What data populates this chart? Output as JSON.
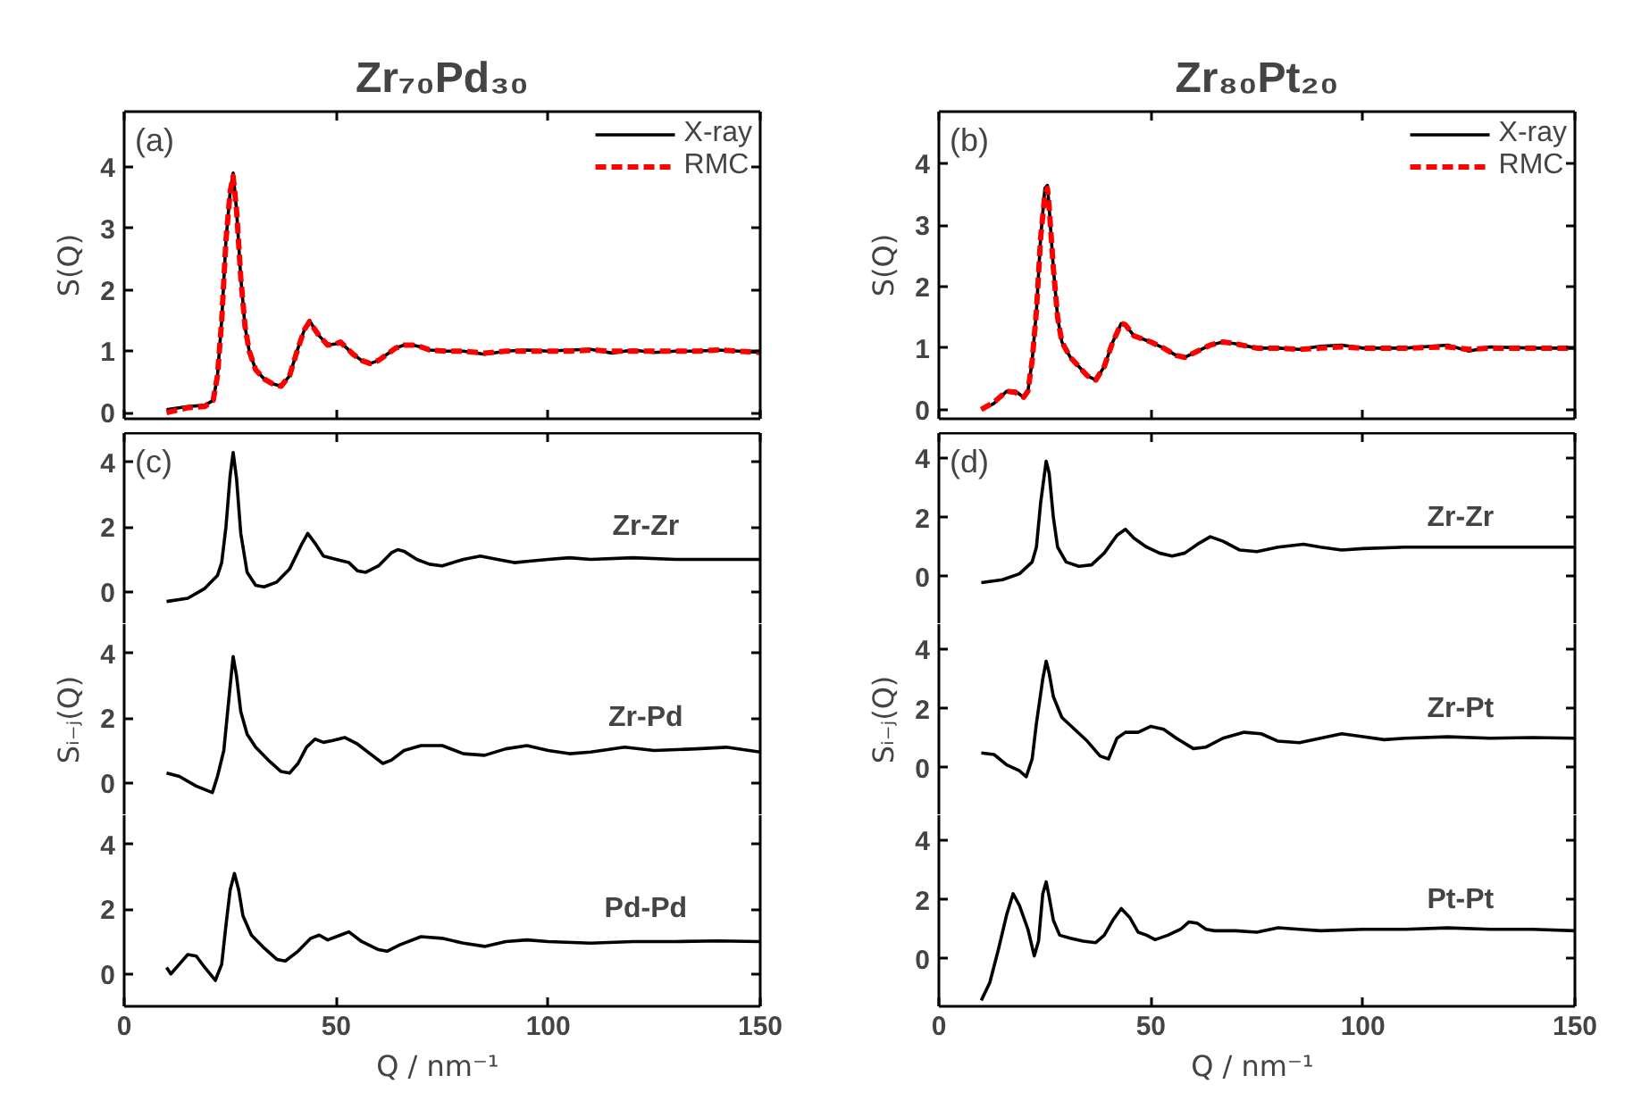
{
  "chart_data": [
    {
      "type": "line",
      "title": "Zr₇₀Pd₃₀",
      "ylabel": "S(Q)",
      "annotations": [
        "(a)"
      ],
      "xlim": [
        0,
        150
      ],
      "xticks": [
        0,
        50,
        100,
        150
      ],
      "ylim": [
        -0.1,
        4.9
      ],
      "yticks": [
        0,
        1,
        2,
        3,
        4
      ],
      "tick_labels": "y",
      "legend": "top right",
      "grid": false,
      "marker": "none",
      "series": [
        {
          "name": "X-ray",
          "color": "#000000",
          "line_style": "solid",
          "x": [
            10,
            15,
            19,
            21,
            22,
            23,
            24,
            25,
            25.7,
            26.5,
            27.5,
            28.5,
            29.5,
            31,
            33,
            35,
            37,
            39,
            41,
            42.5,
            43.7,
            45,
            46,
            48,
            50,
            51,
            52.5,
            54,
            56,
            58,
            60,
            62,
            64,
            66,
            68,
            70,
            72,
            76,
            80,
            85,
            90,
            95,
            100,
            105,
            110,
            115,
            120,
            125,
            130,
            135,
            140,
            145,
            150
          ],
          "values": [
            0.05,
            0.1,
            0.12,
            0.2,
            0.6,
            1.5,
            2.8,
            3.6,
            3.9,
            3.3,
            2.2,
            1.4,
            1.0,
            0.7,
            0.55,
            0.47,
            0.43,
            0.6,
            1.05,
            1.35,
            1.5,
            1.35,
            1.25,
            1.1,
            1.12,
            1.15,
            1.05,
            0.95,
            0.85,
            0.8,
            0.85,
            0.95,
            1.05,
            1.1,
            1.1,
            1.07,
            1.02,
            1.0,
            1.0,
            0.95,
            1.0,
            1.02,
            1.0,
            1.02,
            1.03,
            0.97,
            1.02,
            0.98,
            1.0,
            1.0,
            1.02,
            1.0,
            0.98
          ]
        },
        {
          "name": "RMC",
          "color": "#ff0000",
          "line_style": "dashed",
          "x": [
            10,
            15,
            19,
            21,
            22,
            23,
            24,
            25,
            25.7,
            26.5,
            27.5,
            28.5,
            29.5,
            31,
            33,
            35,
            37,
            39,
            41,
            42.5,
            43.7,
            45,
            46,
            48,
            50,
            51,
            52.5,
            54,
            56,
            58,
            60,
            62,
            64,
            66,
            68,
            70,
            72,
            76,
            80,
            85,
            90,
            95,
            100,
            105,
            110,
            115,
            120,
            125,
            130,
            135,
            140,
            145,
            150
          ],
          "values": [
            0.0,
            0.08,
            0.1,
            0.2,
            0.6,
            1.5,
            2.8,
            3.6,
            3.85,
            3.3,
            2.2,
            1.4,
            1.0,
            0.7,
            0.55,
            0.47,
            0.43,
            0.6,
            1.05,
            1.35,
            1.48,
            1.35,
            1.25,
            1.1,
            1.12,
            1.15,
            1.05,
            0.95,
            0.85,
            0.8,
            0.85,
            0.95,
            1.05,
            1.1,
            1.1,
            1.07,
            1.02,
            1.0,
            1.0,
            0.97,
            1.0,
            1.0,
            1.0,
            1.0,
            1.02,
            1.0,
            1.0,
            1.0,
            1.0,
            1.0,
            1.02,
            1.0,
            0.98
          ]
        }
      ]
    },
    {
      "type": "line",
      "annotations": [
        "(c)"
      ],
      "xlim": [
        0,
        150
      ],
      "xticks": [
        0,
        50,
        100,
        150
      ],
      "ylim": [
        -1,
        4.9
      ],
      "yticks": [
        0,
        2,
        4
      ],
      "tick_labels": "y",
      "grid": false,
      "marker": "none",
      "series": [
        {
          "name": "Zr-Zr",
          "color": "#000000",
          "line_style": "solid",
          "x": [
            10,
            15,
            19,
            22,
            23,
            24,
            25,
            25.7,
            26.5,
            27.5,
            29,
            31,
            33,
            36,
            39,
            42,
            43.3,
            45,
            47,
            50,
            53,
            55,
            57,
            60,
            63,
            64.5,
            66,
            69,
            72,
            75,
            80,
            84,
            88,
            92,
            96,
            100,
            105,
            110,
            120,
            130,
            140,
            150
          ],
          "values": [
            -0.3,
            -0.2,
            0.1,
            0.5,
            0.9,
            2.0,
            3.6,
            4.3,
            3.5,
            1.8,
            0.6,
            0.2,
            0.15,
            0.3,
            0.7,
            1.5,
            1.8,
            1.5,
            1.1,
            1.0,
            0.9,
            0.65,
            0.6,
            0.8,
            1.2,
            1.3,
            1.25,
            1.0,
            0.85,
            0.8,
            1.0,
            1.1,
            1.0,
            0.9,
            0.95,
            1.0,
            1.05,
            1.0,
            1.05,
            1.0,
            1.0,
            1.0
          ]
        }
      ]
    },
    {
      "type": "line",
      "ylabel": "Sᵢ₋ⱼ(Q)",
      "xlim": [
        0,
        150
      ],
      "xticks": [
        0,
        50,
        100,
        150
      ],
      "ylim": [
        -1,
        4.9
      ],
      "yticks": [
        0,
        2,
        4
      ],
      "tick_labels": "y",
      "grid": false,
      "marker": "none",
      "series": [
        {
          "name": "Zr-Pd",
          "color": "#000000",
          "line_style": "solid",
          "x": [
            10,
            13,
            17,
            20.8,
            22,
            23.5,
            25,
            25.7,
            26.5,
            27.5,
            29,
            31,
            34,
            37,
            39,
            41,
            43,
            45,
            47,
            49,
            52,
            55,
            58,
            61,
            63,
            66,
            70,
            75,
            80,
            85,
            90,
            95,
            100,
            105,
            110,
            118,
            125,
            135,
            142,
            150
          ],
          "values": [
            0.3,
            0.2,
            -0.1,
            -0.3,
            0.2,
            1.0,
            3.0,
            3.9,
            3.3,
            2.2,
            1.5,
            1.1,
            0.7,
            0.35,
            0.3,
            0.6,
            1.1,
            1.35,
            1.25,
            1.3,
            1.4,
            1.2,
            0.9,
            0.6,
            0.7,
            1.0,
            1.15,
            1.15,
            0.9,
            0.85,
            1.05,
            1.15,
            1.0,
            0.9,
            0.95,
            1.1,
            1.0,
            1.05,
            1.1,
            0.95
          ]
        }
      ]
    },
    {
      "type": "line",
      "xlabel": "Q  / nm⁻¹",
      "xlim": [
        0,
        150
      ],
      "xticks": [
        0,
        50,
        100,
        150
      ],
      "ylim": [
        -1,
        4.9
      ],
      "yticks": [
        0,
        2,
        4
      ],
      "grid": false,
      "marker": "none",
      "series": [
        {
          "name": "Pd-Pd",
          "color": "#000000",
          "line_style": "solid",
          "x": [
            10,
            11,
            13,
            15,
            17,
            19,
            21.5,
            23,
            24,
            25,
            26,
            27,
            28,
            30,
            33,
            36,
            38,
            41,
            44,
            46,
            48,
            51,
            53,
            56,
            60,
            62,
            65,
            70,
            75,
            80,
            85,
            90,
            95,
            100,
            110,
            120,
            130,
            140,
            150
          ],
          "values": [
            0.2,
            0.0,
            0.3,
            0.6,
            0.55,
            0.2,
            -0.2,
            0.3,
            1.5,
            2.6,
            3.1,
            2.6,
            1.8,
            1.2,
            0.8,
            0.45,
            0.4,
            0.7,
            1.1,
            1.2,
            1.05,
            1.2,
            1.3,
            1.0,
            0.75,
            0.7,
            0.9,
            1.15,
            1.1,
            0.95,
            0.85,
            1.0,
            1.05,
            1.0,
            0.95,
            1.0,
            1.0,
            1.02,
            1.0
          ]
        }
      ]
    },
    {
      "type": "line",
      "title": "Zr₈₀Pt₂₀",
      "ylabel": "S(Q)",
      "annotations": [
        "(b)"
      ],
      "xlim": [
        0,
        150
      ],
      "xticks": [
        0,
        50,
        100,
        150
      ],
      "ylim": [
        -0.15,
        4.85
      ],
      "yticks": [
        0,
        1,
        2,
        3,
        4
      ],
      "tick_labels": "y",
      "legend": "top right",
      "grid": false,
      "marker": "none",
      "series": [
        {
          "name": "X-ray",
          "color": "#000000",
          "line_style": "solid",
          "x": [
            10,
            13,
            16,
            18,
            20,
            21,
            22,
            23,
            24,
            25,
            25.6,
            26,
            27,
            28,
            29,
            31,
            33,
            35,
            37,
            39,
            41,
            43,
            44,
            46,
            48,
            50,
            53,
            56,
            58,
            61,
            64,
            67,
            70,
            75,
            80,
            85,
            90,
            95,
            100,
            110,
            120,
            125,
            130,
            140,
            150
          ],
          "values": [
            0.0,
            0.1,
            0.3,
            0.3,
            0.2,
            0.3,
            0.8,
            1.6,
            2.8,
            3.6,
            3.65,
            3.3,
            2.3,
            1.5,
            1.1,
            0.85,
            0.7,
            0.55,
            0.48,
            0.7,
            1.1,
            1.4,
            1.38,
            1.2,
            1.15,
            1.1,
            1.0,
            0.88,
            0.85,
            0.95,
            1.05,
            1.1,
            1.07,
            1.0,
            1.0,
            0.98,
            1.03,
            1.05,
            1.0,
            1.0,
            1.05,
            0.95,
            1.02,
            1.0,
            1.0
          ]
        },
        {
          "name": "RMC",
          "color": "#ff0000",
          "line_style": "dashed",
          "x": [
            10,
            13,
            16,
            18,
            20,
            21,
            22,
            23,
            24,
            25,
            25.6,
            26,
            27,
            28,
            29,
            31,
            33,
            35,
            37,
            39,
            41,
            43,
            44,
            46,
            48,
            50,
            53,
            56,
            58,
            61,
            64,
            67,
            70,
            75,
            80,
            85,
            90,
            95,
            100,
            110,
            120,
            125,
            130,
            140,
            150
          ],
          "values": [
            0.0,
            0.12,
            0.3,
            0.28,
            0.2,
            0.3,
            0.8,
            1.6,
            2.8,
            3.5,
            3.6,
            3.3,
            2.3,
            1.5,
            1.1,
            0.85,
            0.7,
            0.55,
            0.48,
            0.7,
            1.1,
            1.4,
            1.38,
            1.2,
            1.15,
            1.1,
            1.0,
            0.88,
            0.85,
            0.95,
            1.05,
            1.1,
            1.07,
            1.0,
            1.0,
            0.98,
            1.0,
            1.02,
            1.0,
            1.0,
            1.02,
            0.98,
            1.0,
            1.0,
            1.0
          ]
        }
      ]
    },
    {
      "type": "line",
      "annotations": [
        "(d)"
      ],
      "xlim": [
        0,
        150
      ],
      "xticks": [
        0,
        50,
        100,
        150
      ],
      "ylim": [
        -1.6,
        4.85
      ],
      "yticks": [
        0,
        2,
        4
      ],
      "tick_labels": "y",
      "grid": false,
      "marker": "none",
      "series": [
        {
          "name": "Zr-Zr",
          "color": "#000000",
          "line_style": "solid",
          "x": [
            10,
            15,
            19,
            22,
            23,
            24,
            25.3,
            26,
            27,
            28,
            30,
            33,
            36,
            39,
            42,
            44,
            46,
            49,
            52,
            55,
            58,
            61,
            64,
            67,
            71,
            75,
            80,
            86,
            90,
            95,
            100,
            110,
            120,
            150
          ],
          "values": [
            -0.2,
            -0.1,
            0.1,
            0.5,
            1.0,
            2.5,
            3.9,
            3.5,
            2.0,
            1.0,
            0.5,
            0.35,
            0.4,
            0.8,
            1.4,
            1.6,
            1.3,
            1.0,
            0.8,
            0.7,
            0.8,
            1.1,
            1.35,
            1.2,
            0.9,
            0.85,
            1.0,
            1.1,
            1.0,
            0.9,
            0.95,
            1.0,
            1.0,
            1.0
          ]
        }
      ]
    },
    {
      "type": "line",
      "ylabel": "Sᵢ₋ⱼ(Q)",
      "xlim": [
        0,
        150
      ],
      "xticks": [
        0,
        50,
        100,
        150
      ],
      "ylim": [
        -1.6,
        4.85
      ],
      "yticks": [
        0,
        2,
        4
      ],
      "tick_labels": "y",
      "grid": false,
      "marker": "none",
      "series": [
        {
          "name": "Zr-Pt",
          "color": "#000000",
          "line_style": "solid",
          "x": [
            10,
            13,
            16,
            19,
            20.6,
            22,
            23,
            24.5,
            25.3,
            26,
            27,
            29,
            32,
            35,
            38,
            40,
            42,
            44,
            47,
            50,
            53,
            56,
            60,
            63,
            67,
            72,
            76,
            80,
            85,
            90,
            95,
            100,
            105,
            110,
            120,
            130,
            140,
            150
          ],
          "values": [
            0.5,
            0.45,
            0.1,
            -0.1,
            -0.3,
            0.3,
            1.5,
            3.0,
            3.6,
            3.2,
            2.4,
            1.7,
            1.3,
            0.9,
            0.4,
            0.3,
            1.0,
            1.2,
            1.2,
            1.4,
            1.3,
            1.0,
            0.65,
            0.7,
            1.0,
            1.2,
            1.15,
            0.9,
            0.85,
            1.0,
            1.15,
            1.05,
            0.95,
            1.0,
            1.05,
            1.0,
            1.02,
            1.0
          ]
        }
      ]
    },
    {
      "type": "line",
      "xlabel": "Q  / nm⁻¹",
      "xlim": [
        0,
        150
      ],
      "xticks": [
        0,
        50,
        100,
        150
      ],
      "ylim": [
        -1.6,
        4.85
      ],
      "yticks": [
        0,
        2,
        4
      ],
      "grid": false,
      "marker": "none",
      "series": [
        {
          "name": "Pt-Pt",
          "color": "#000000",
          "line_style": "solid",
          "x": [
            10,
            12,
            14,
            16,
            17.5,
            19,
            21,
            22.5,
            23.5,
            24.5,
            25.3,
            26,
            27,
            28.5,
            31,
            34,
            37,
            39,
            41,
            43,
            45,
            47,
            49,
            51,
            54,
            57,
            59,
            61,
            63,
            65,
            70,
            75,
            80,
            85,
            90,
            100,
            110,
            120,
            130,
            140,
            150
          ],
          "values": [
            -1.4,
            -0.8,
            0.3,
            1.5,
            2.2,
            1.8,
            1.0,
            0.1,
            0.6,
            2.2,
            2.6,
            2.1,
            1.3,
            0.8,
            0.7,
            0.6,
            0.55,
            0.8,
            1.3,
            1.7,
            1.4,
            0.9,
            0.8,
            0.65,
            0.8,
            1.0,
            1.25,
            1.2,
            1.0,
            0.95,
            0.95,
            0.9,
            1.05,
            1.0,
            0.95,
            1.0,
            1.0,
            1.05,
            1.0,
            1.0,
            0.95
          ]
        }
      ]
    }
  ]
}
